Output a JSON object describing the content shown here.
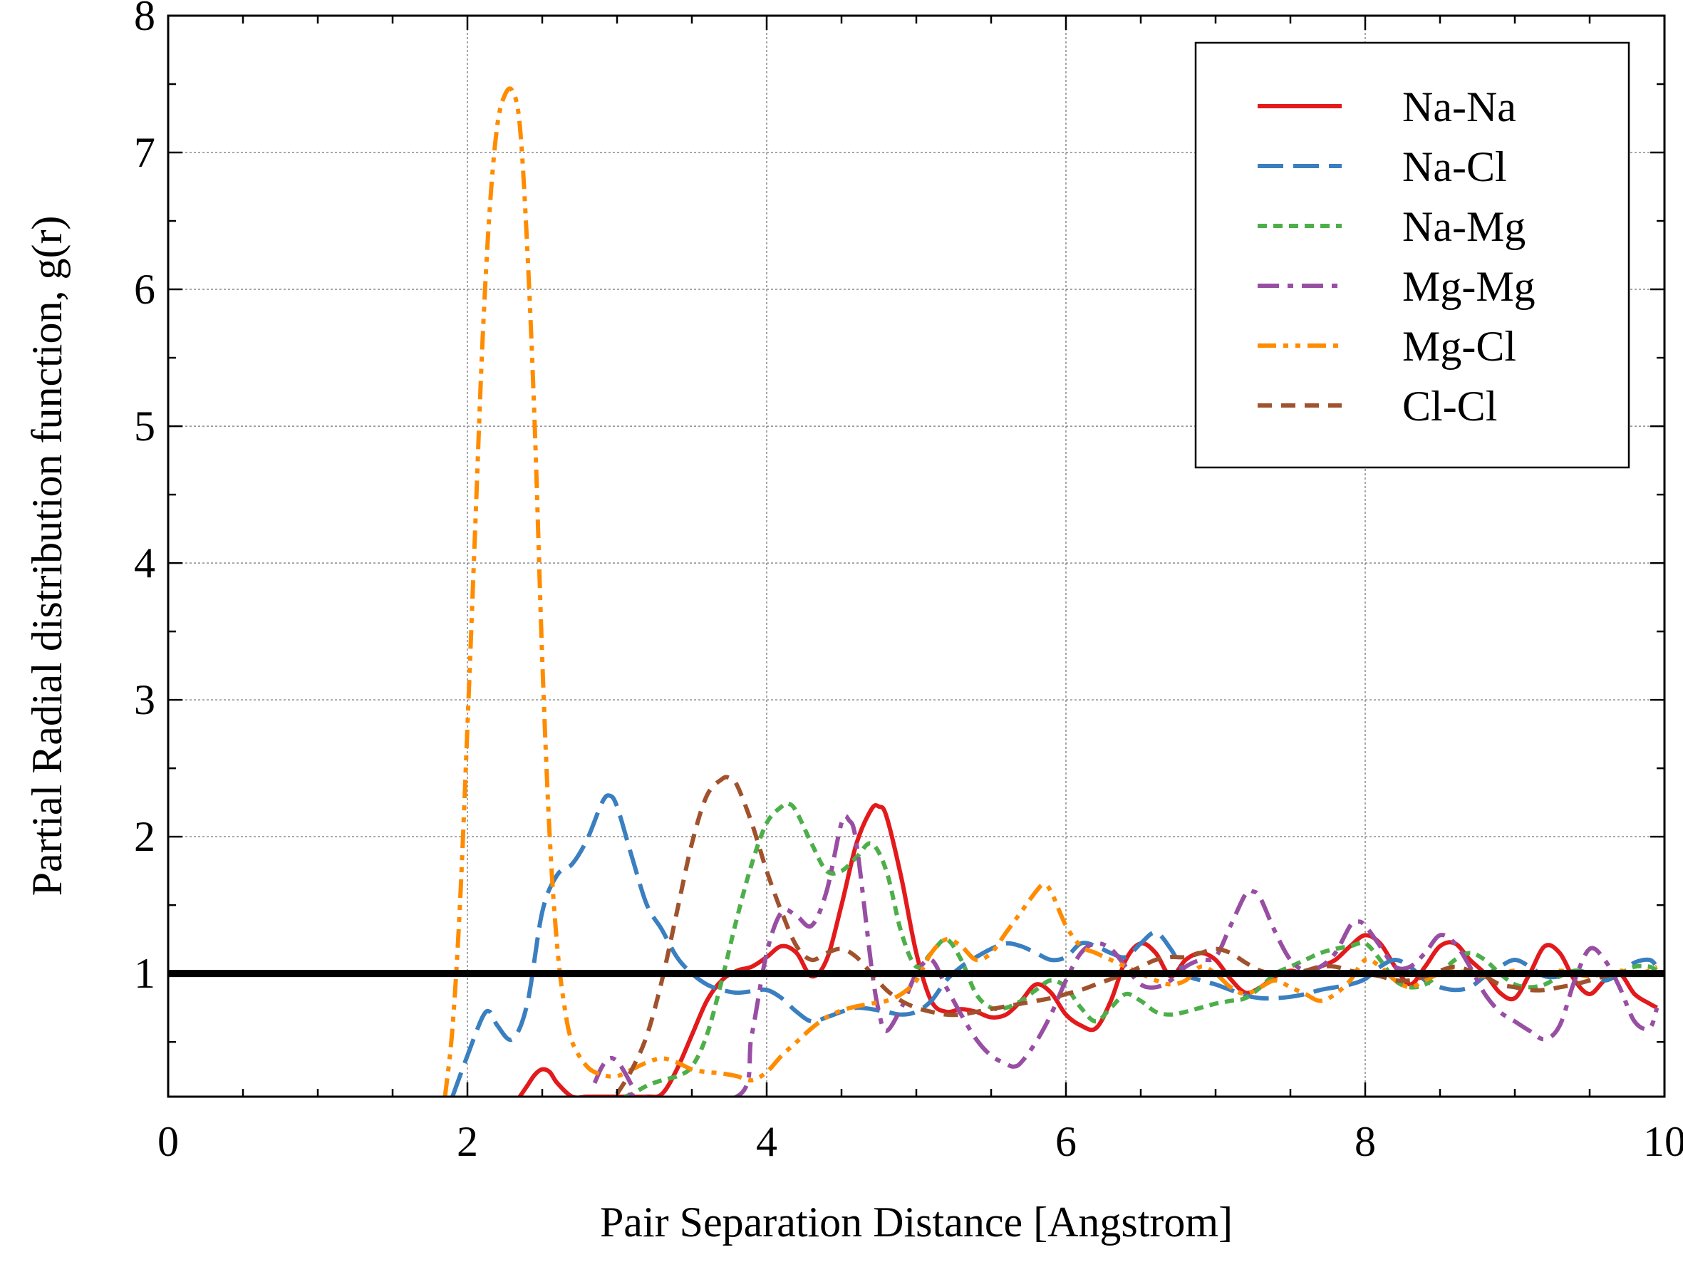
{
  "chart_data": {
    "type": "line",
    "title": "",
    "xlabel": "Pair Separation Distance [Angstrom]",
    "ylabel": "Partial Radial distribution function, g(r)",
    "xlim": [
      0,
      10
    ],
    "ylim": [
      0.1,
      8
    ],
    "x_ticks": [
      "0",
      "2",
      "4",
      "6",
      "8",
      "10"
    ],
    "y_ticks": [
      "1",
      "2",
      "3",
      "4",
      "5",
      "6",
      "7",
      "8"
    ],
    "grid": true,
    "legend_position": "top-right",
    "reference_line": {
      "y": 1,
      "color": "#000000"
    },
    "series": [
      {
        "name": "Na-Na",
        "color": "#e31a1c",
        "dash": "solid",
        "x": [
          2.35,
          2.4,
          2.45,
          2.5,
          2.55,
          2.6,
          2.7,
          2.8,
          2.9,
          3.0,
          3.2,
          3.3,
          3.4,
          3.5,
          3.6,
          3.7,
          3.8,
          3.9,
          4.0,
          4.1,
          4.2,
          4.3,
          4.4,
          4.5,
          4.6,
          4.7,
          4.75,
          4.8,
          4.9,
          5.0,
          5.1,
          5.2,
          5.3,
          5.4,
          5.5,
          5.6,
          5.7,
          5.8,
          5.9,
          6.0,
          6.1,
          6.2,
          6.3,
          6.4,
          6.5,
          6.6,
          6.7,
          6.8,
          6.9,
          7.0,
          7.1,
          7.2,
          7.3,
          7.4,
          7.5,
          7.6,
          7.7,
          7.8,
          7.9,
          8.0,
          8.1,
          8.2,
          8.3,
          8.4,
          8.5,
          8.6,
          8.7,
          8.8,
          8.9,
          9.0,
          9.1,
          9.2,
          9.3,
          9.4,
          9.5,
          9.6,
          9.7,
          9.8,
          9.9,
          9.95
        ],
        "values": [
          0.1,
          0.18,
          0.26,
          0.3,
          0.28,
          0.2,
          0.1,
          0.1,
          0.1,
          0.1,
          0.1,
          0.12,
          0.3,
          0.55,
          0.8,
          0.95,
          1.02,
          1.05,
          1.12,
          1.2,
          1.15,
          0.98,
          1.1,
          1.5,
          1.95,
          2.2,
          2.22,
          2.15,
          1.7,
          1.15,
          0.8,
          0.72,
          0.74,
          0.72,
          0.68,
          0.7,
          0.8,
          0.92,
          0.86,
          0.7,
          0.62,
          0.6,
          0.8,
          1.1,
          1.22,
          1.15,
          0.98,
          1.1,
          1.15,
          1.1,
          0.96,
          0.86,
          0.9,
          0.98,
          1.02,
          1.0,
          1.05,
          1.1,
          1.2,
          1.28,
          1.22,
          1.05,
          0.92,
          1.05,
          1.2,
          1.22,
          1.1,
          1.0,
          0.86,
          0.82,
          1.0,
          1.2,
          1.15,
          0.95,
          0.85,
          0.95,
          1.0,
          0.85,
          0.78,
          0.75
        ]
      },
      {
        "name": "Na-Cl",
        "color": "#3a7fc0",
        "dash": "longdash",
        "x": [
          1.9,
          2.0,
          2.1,
          2.15,
          2.2,
          2.3,
          2.4,
          2.5,
          2.6,
          2.7,
          2.8,
          2.9,
          2.95,
          3.0,
          3.1,
          3.2,
          3.3,
          3.4,
          3.5,
          3.6,
          3.7,
          3.8,
          3.9,
          4.0,
          4.1,
          4.2,
          4.3,
          4.4,
          4.5,
          4.6,
          4.7,
          4.8,
          4.9,
          5.0,
          5.1,
          5.2,
          5.3,
          5.4,
          5.5,
          5.6,
          5.7,
          5.8,
          5.9,
          6.0,
          6.1,
          6.2,
          6.3,
          6.4,
          6.5,
          6.6,
          6.7,
          6.8,
          6.9,
          7.0,
          7.1,
          7.2,
          7.3,
          7.4,
          7.5,
          7.6,
          7.7,
          7.8,
          7.9,
          8.0,
          8.1,
          8.2,
          8.3,
          8.4,
          8.5,
          8.6,
          8.7,
          8.8,
          8.9,
          9.0,
          9.1,
          9.2,
          9.3,
          9.4,
          9.5,
          9.6,
          9.7,
          9.8,
          9.9,
          9.95
        ],
        "values": [
          0.1,
          0.4,
          0.68,
          0.72,
          0.62,
          0.52,
          0.78,
          1.45,
          1.72,
          1.8,
          1.98,
          2.25,
          2.3,
          2.22,
          1.85,
          1.5,
          1.32,
          1.12,
          1.0,
          0.92,
          0.88,
          0.86,
          0.87,
          0.88,
          0.82,
          0.72,
          0.65,
          0.68,
          0.72,
          0.75,
          0.74,
          0.72,
          0.7,
          0.72,
          0.8,
          0.95,
          1.05,
          1.12,
          1.18,
          1.22,
          1.2,
          1.15,
          1.1,
          1.12,
          1.22,
          1.2,
          1.15,
          1.12,
          1.22,
          1.3,
          1.18,
          1.0,
          0.95,
          0.92,
          0.88,
          0.84,
          0.82,
          0.82,
          0.83,
          0.85,
          0.88,
          0.9,
          0.92,
          0.96,
          1.05,
          1.1,
          1.05,
          0.95,
          0.9,
          0.88,
          0.9,
          0.98,
          1.05,
          1.1,
          1.05,
          0.98,
          0.98,
          1.02,
          1.0,
          0.95,
          1.0,
          1.08,
          1.1,
          1.05
        ]
      },
      {
        "name": "Na-Mg",
        "color": "#4daf4a",
        "dash": "dot",
        "x": [
          3.05,
          3.1,
          3.2,
          3.3,
          3.4,
          3.5,
          3.6,
          3.7,
          3.8,
          3.9,
          4.0,
          4.1,
          4.15,
          4.2,
          4.3,
          4.4,
          4.5,
          4.6,
          4.7,
          4.8,
          4.9,
          5.0,
          5.1,
          5.2,
          5.3,
          5.4,
          5.5,
          5.6,
          5.7,
          5.8,
          5.9,
          6.0,
          6.1,
          6.2,
          6.3,
          6.4,
          6.5,
          6.6,
          6.7,
          6.8,
          6.9,
          7.0,
          7.1,
          7.2,
          7.3,
          7.4,
          7.5,
          7.6,
          7.7,
          7.8,
          7.9,
          8.0,
          8.1,
          8.2,
          8.3,
          8.4,
          8.5,
          8.6,
          8.7,
          8.8,
          8.9,
          9.0,
          9.1,
          9.2,
          9.3,
          9.4,
          9.5,
          9.6,
          9.7,
          9.8,
          9.9,
          9.95
        ],
        "values": [
          0.1,
          0.12,
          0.18,
          0.22,
          0.25,
          0.32,
          0.55,
          0.95,
          1.4,
          1.8,
          2.1,
          2.22,
          2.24,
          2.18,
          1.95,
          1.75,
          1.75,
          1.85,
          1.95,
          1.75,
          1.3,
          1.05,
          1.15,
          1.25,
          1.1,
          0.85,
          0.75,
          0.75,
          0.8,
          0.88,
          0.95,
          0.9,
          0.75,
          0.65,
          0.75,
          0.85,
          0.8,
          0.72,
          0.7,
          0.72,
          0.75,
          0.78,
          0.8,
          0.82,
          0.9,
          1.0,
          1.05,
          1.1,
          1.15,
          1.18,
          1.2,
          1.22,
          1.1,
          0.95,
          0.9,
          0.92,
          1.0,
          1.1,
          1.15,
          1.1,
          1.0,
          0.92,
          0.9,
          0.92,
          0.98,
          1.02,
          1.0,
          0.98,
          1.0,
          1.05,
          1.05,
          1.02
        ]
      },
      {
        "name": "Mg-Mg",
        "color": "#984ea3",
        "dash": "dashdot",
        "x": [
          2.85,
          2.9,
          2.95,
          3.0,
          3.05,
          3.1,
          3.15,
          3.8,
          3.9,
          4.0,
          4.1,
          4.2,
          4.3,
          4.4,
          4.5,
          4.55,
          4.6,
          4.7,
          4.75,
          4.8,
          4.9,
          5.0,
          5.1,
          5.2,
          5.3,
          5.4,
          5.5,
          5.6,
          5.65,
          5.7,
          5.8,
          5.9,
          6.0,
          6.1,
          6.2,
          6.3,
          6.4,
          6.5,
          6.6,
          6.7,
          6.8,
          6.9,
          7.0,
          7.1,
          7.2,
          7.25,
          7.3,
          7.4,
          7.5,
          7.6,
          7.7,
          7.8,
          7.9,
          7.95,
          8.0,
          8.1,
          8.2,
          8.3,
          8.4,
          8.5,
          8.6,
          8.7,
          8.8,
          8.9,
          9.0,
          9.1,
          9.2,
          9.3,
          9.4,
          9.5,
          9.6,
          9.7,
          9.8,
          9.9,
          9.95
        ],
        "values": [
          0.2,
          0.32,
          0.38,
          0.36,
          0.28,
          0.18,
          0.1,
          0.1,
          0.55,
          1.15,
          1.45,
          1.42,
          1.35,
          1.6,
          2.1,
          2.12,
          1.95,
          1.05,
          0.72,
          0.58,
          0.75,
          1.0,
          1.1,
          0.9,
          0.7,
          0.52,
          0.4,
          0.34,
          0.32,
          0.35,
          0.5,
          0.7,
          0.95,
          1.15,
          1.22,
          1.18,
          1.05,
          0.92,
          0.9,
          0.95,
          1.05,
          1.1,
          1.12,
          1.35,
          1.58,
          1.6,
          1.55,
          1.3,
          1.1,
          1.02,
          1.05,
          1.15,
          1.35,
          1.38,
          1.35,
          1.2,
          1.05,
          1.05,
          1.15,
          1.28,
          1.22,
          1.05,
          0.85,
          0.72,
          0.65,
          0.58,
          0.52,
          0.62,
          0.95,
          1.18,
          1.1,
          0.9,
          0.65,
          0.6,
          0.75
        ]
      },
      {
        "name": "Mg-Cl",
        "color": "#ff8c00",
        "dash": "dashdotdot",
        "x": [
          1.85,
          1.9,
          1.95,
          2.0,
          2.05,
          2.1,
          2.15,
          2.2,
          2.25,
          2.3,
          2.35,
          2.4,
          2.45,
          2.5,
          2.55,
          2.6,
          2.65,
          2.7,
          2.8,
          2.9,
          3.0,
          3.1,
          3.2,
          3.3,
          3.4,
          3.5,
          3.6,
          3.7,
          3.8,
          3.9,
          4.0,
          4.1,
          4.2,
          4.3,
          4.4,
          4.5,
          4.6,
          4.7,
          4.8,
          4.9,
          5.0,
          5.1,
          5.2,
          5.3,
          5.4,
          5.5,
          5.6,
          5.7,
          5.8,
          5.85,
          5.9,
          6.0,
          6.1,
          6.2,
          6.3,
          6.4,
          6.5,
          6.6,
          6.7,
          6.8,
          6.9,
          7.0,
          7.1,
          7.2,
          7.3,
          7.4,
          7.5,
          7.6,
          7.7,
          7.8,
          7.9,
          8.0,
          8.1,
          8.2,
          8.3,
          8.4,
          8.5,
          8.6,
          8.7,
          8.8,
          8.9,
          9.0,
          9.1,
          9.2,
          9.3,
          9.4,
          9.5,
          9.6,
          9.7,
          9.8,
          9.9,
          9.95
        ],
        "values": [
          0.1,
          0.6,
          1.5,
          2.8,
          4.2,
          5.6,
          6.6,
          7.2,
          7.42,
          7.45,
          7.2,
          6.3,
          5.0,
          3.3,
          2.0,
          1.2,
          0.75,
          0.5,
          0.32,
          0.26,
          0.25,
          0.3,
          0.35,
          0.38,
          0.35,
          0.3,
          0.28,
          0.27,
          0.25,
          0.22,
          0.28,
          0.4,
          0.5,
          0.6,
          0.68,
          0.73,
          0.76,
          0.78,
          0.8,
          0.85,
          0.95,
          1.15,
          1.25,
          1.2,
          1.1,
          1.15,
          1.3,
          1.45,
          1.6,
          1.65,
          1.6,
          1.35,
          1.2,
          1.15,
          1.1,
          1.05,
          1.0,
          0.95,
          0.92,
          0.95,
          1.05,
          1.0,
          0.9,
          0.85,
          0.9,
          0.95,
          0.9,
          0.85,
          0.8,
          0.85,
          0.95,
          1.1,
          1.05,
          0.95,
          0.9,
          0.95,
          1.0,
          1.02,
          1.0,
          0.98,
          1.0,
          1.02,
          1.0,
          1.0,
          1.02,
          1.0,
          0.98,
          1.0,
          1.02,
          1.0,
          1.02,
          1.05
        ]
      },
      {
        "name": "Cl-Cl",
        "color": "#a0522d",
        "dash": "dash",
        "x": [
          3.0,
          3.1,
          3.2,
          3.3,
          3.4,
          3.5,
          3.6,
          3.7,
          3.75,
          3.8,
          3.9,
          4.0,
          4.1,
          4.2,
          4.3,
          4.4,
          4.5,
          4.6,
          4.7,
          4.8,
          4.9,
          5.0,
          5.1,
          5.2,
          5.3,
          5.4,
          5.5,
          5.6,
          5.7,
          5.8,
          5.9,
          6.0,
          6.1,
          6.2,
          6.3,
          6.4,
          6.5,
          6.6,
          6.7,
          6.8,
          6.9,
          7.0,
          7.1,
          7.2,
          7.3,
          7.4,
          7.5,
          7.6,
          7.7,
          7.8,
          7.9,
          8.0,
          8.1,
          8.2,
          8.3,
          8.4,
          8.5,
          8.6,
          8.7,
          8.8,
          8.9,
          9.0,
          9.1,
          9.2,
          9.3,
          9.4,
          9.5,
          9.6,
          9.7,
          9.8,
          9.9,
          9.95
        ],
        "values": [
          0.12,
          0.3,
          0.55,
          0.95,
          1.45,
          1.95,
          2.3,
          2.42,
          2.43,
          2.38,
          2.1,
          1.75,
          1.45,
          1.2,
          1.1,
          1.15,
          1.18,
          1.12,
          1.0,
          0.88,
          0.8,
          0.75,
          0.72,
          0.7,
          0.7,
          0.72,
          0.74,
          0.76,
          0.78,
          0.8,
          0.82,
          0.85,
          0.88,
          0.92,
          0.96,
          1.0,
          1.05,
          1.1,
          1.12,
          1.12,
          1.15,
          1.18,
          1.15,
          1.08,
          1.02,
          1.0,
          1.0,
          1.02,
          1.05,
          1.05,
          1.02,
          1.0,
          0.98,
          0.95,
          0.95,
          0.98,
          1.02,
          1.05,
          1.02,
          0.98,
          0.92,
          0.9,
          0.88,
          0.88,
          0.9,
          0.92,
          0.95,
          0.98,
          1.0,
          1.0,
          1.0,
          1.0
        ]
      }
    ]
  }
}
